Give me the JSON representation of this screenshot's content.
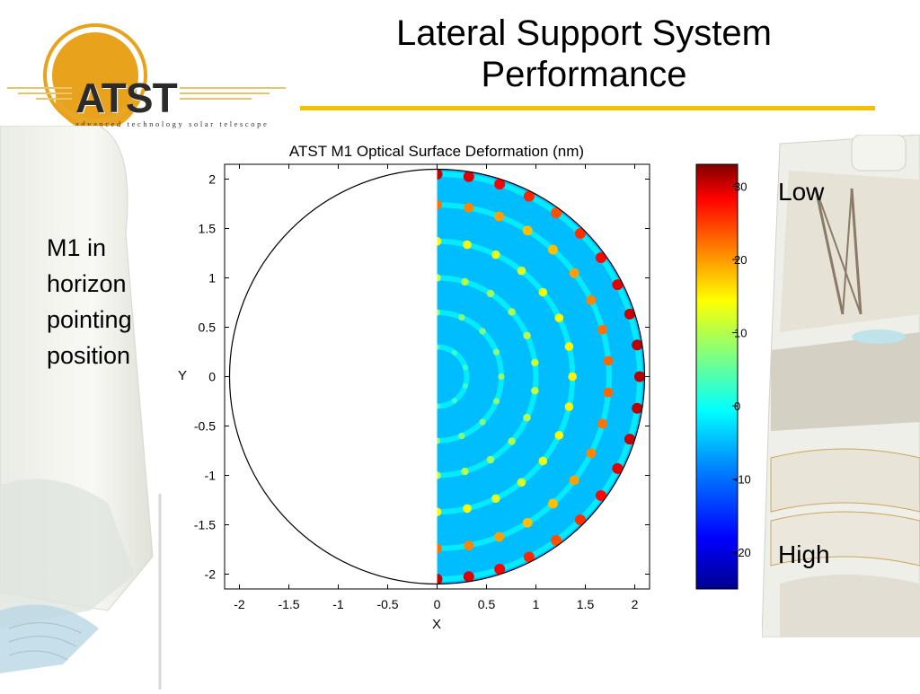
{
  "slide": {
    "title_line1": "Lateral Support System",
    "title_line2": "Performance",
    "side_text": [
      "M1 in",
      "horizon",
      "pointing",
      "position"
    ],
    "low_label": "Low",
    "high_label": "High"
  },
  "logo": {
    "text": "ATST",
    "tagline": "advanced technology solar telescope",
    "accent_color": "#E8A21C"
  },
  "colors": {
    "title_rule": "#F2C200",
    "colormap": [
      "#00008F",
      "#0000FF",
      "#0080FF",
      "#00FFFF",
      "#80FF80",
      "#FFFF00",
      "#FF8000",
      "#FF0000",
      "#800000"
    ]
  },
  "chart_data": {
    "type": "heatmap",
    "title": "ATST M1 Optical Surface Deformation (nm)",
    "xlabel": "X",
    "ylabel": "Y",
    "xlim": [
      -2.15,
      2.15
    ],
    "ylim": [
      -2.15,
      2.15
    ],
    "x_ticks": [
      "-2",
      "-1.5",
      "-1",
      "-0.5",
      "0",
      "0.5",
      "1",
      "1.5",
      "2"
    ],
    "y_ticks": [
      "2",
      "1.5",
      "1",
      "0.5",
      "0",
      "-0.5",
      "-1",
      "-1.5",
      "-2"
    ],
    "aperture_radius": 2.1,
    "data_half": "x >= 0",
    "baseline_value": -7,
    "rings": [
      {
        "radius": 0.3,
        "peak_value": 0
      },
      {
        "radius": 0.65,
        "peak_value": 5
      },
      {
        "radius": 1.0,
        "peak_value": 8
      },
      {
        "radius": 1.37,
        "peak_value": 12
      },
      {
        "radius": 1.74,
        "peak_value": 20
      },
      {
        "radius": 2.05,
        "peak_value": 30
      }
    ],
    "colorbar": {
      "min": -25,
      "max": 33,
      "tick_values": [
        30,
        20,
        10,
        0,
        -10,
        -20
      ],
      "tick_labels": [
        "30",
        "20",
        "10",
        "0",
        "-10",
        "-20"
      ]
    }
  }
}
